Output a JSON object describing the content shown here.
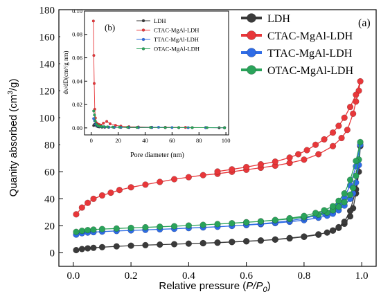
{
  "chart_data": [
    {
      "panel": "(a)",
      "type": "line",
      "xlabel_main": "Relative pressure (",
      "xlabel_var": "P/P",
      "xlabel_sub": "0",
      "xlabel_close": ")",
      "ylabel_pre": "Quanity absorbed (cm",
      "ylabel_sup": "3",
      "ylabel_post": "/g)",
      "xlim": [
        -0.05,
        1.05
      ],
      "ylim": [
        -10,
        180
      ],
      "xticks": [
        "0.0",
        "0.2",
        "0.4",
        "0.6",
        "0.8",
        "1.0"
      ],
      "yticks": [
        "0",
        "20",
        "40",
        "60",
        "80",
        "100",
        "120",
        "140",
        "160",
        "180"
      ],
      "grid": false,
      "legend_position": "top-right",
      "series": [
        {
          "name": "LDH",
          "color": "#3a3a3a",
          "x": [
            0.01,
            0.03,
            0.05,
            0.07,
            0.1,
            0.15,
            0.2,
            0.25,
            0.3,
            0.35,
            0.4,
            0.45,
            0.5,
            0.55,
            0.6,
            0.65,
            0.7,
            0.75,
            0.8,
            0.85,
            0.9,
            0.92,
            0.94,
            0.96,
            0.97,
            0.98,
            0.99,
            0.995,
            0.98,
            0.96,
            0.94,
            0.92,
            0.9,
            0.88,
            0.85,
            0.8,
            0.75,
            0.7,
            0.65,
            0.6,
            0.55,
            0.5,
            0.45
          ],
          "y": [
            2,
            2.8,
            3.3,
            3.7,
            4.2,
            4.8,
            5.3,
            5.7,
            6.1,
            6.4,
            6.8,
            7.1,
            7.5,
            8.0,
            8.5,
            9.1,
            9.8,
            10.7,
            11.8,
            13.4,
            16.5,
            18.5,
            21.5,
            27,
            33,
            44,
            60,
            79,
            47,
            31,
            23,
            19,
            16.5,
            15,
            13.7,
            12.1,
            10.9,
            9.9,
            9.1,
            8.6,
            8.1,
            7.6,
            7.2
          ]
        },
        {
          "name": "CTAC-MgAl-LDH",
          "color": "#e8373a",
          "x": [
            0.01,
            0.03,
            0.05,
            0.07,
            0.1,
            0.13,
            0.16,
            0.2,
            0.25,
            0.3,
            0.35,
            0.4,
            0.45,
            0.5,
            0.55,
            0.6,
            0.65,
            0.7,
            0.75,
            0.8,
            0.85,
            0.9,
            0.93,
            0.95,
            0.97,
            0.98,
            0.99,
            0.995,
            0.98,
            0.96,
            0.94,
            0.92,
            0.9,
            0.87,
            0.84,
            0.81,
            0.78,
            0.75,
            0.7,
            0.65,
            0.6,
            0.55,
            0.5
          ],
          "y": [
            28.5,
            33.5,
            37,
            40,
            42.5,
            44.5,
            46.5,
            48.5,
            50.5,
            52.5,
            54.5,
            56,
            57.5,
            58.5,
            60,
            61.5,
            63,
            64.5,
            66.5,
            69,
            73,
            79,
            85,
            91,
            103,
            112,
            120,
            127,
            117,
            108,
            100,
            94,
            89,
            84,
            80,
            76,
            73,
            70.5,
            67.5,
            65.5,
            63.5,
            61.8,
            60.2
          ]
        },
        {
          "name": "TTAC-MgAl-LDH",
          "color": "#2f6ce6",
          "x": [
            0.01,
            0.03,
            0.05,
            0.07,
            0.1,
            0.15,
            0.2,
            0.25,
            0.3,
            0.35,
            0.4,
            0.45,
            0.5,
            0.55,
            0.6,
            0.65,
            0.7,
            0.75,
            0.8,
            0.85,
            0.88,
            0.9,
            0.92,
            0.94,
            0.96,
            0.97,
            0.98,
            0.99,
            0.995,
            0.98,
            0.96,
            0.94,
            0.92,
            0.9,
            0.87,
            0.84,
            0.8,
            0.75,
            0.7,
            0.65,
            0.6
          ],
          "y": [
            13.5,
            14.5,
            15,
            15.3,
            15.7,
            16.2,
            16.6,
            17,
            17.4,
            17.8,
            18.3,
            18.8,
            19.3,
            19.9,
            20.5,
            21.2,
            22,
            23,
            24.2,
            26,
            27.5,
            29,
            31.5,
            35,
            40,
            44,
            52,
            65,
            80,
            64,
            50,
            41,
            36,
            32.5,
            29.5,
            27.5,
            25.5,
            23.8,
            22.5,
            21.5,
            20.8
          ]
        },
        {
          "name": "OTAC-MgAl-LDH",
          "color": "#2aa35a",
          "x": [
            0.01,
            0.03,
            0.05,
            0.07,
            0.1,
            0.15,
            0.2,
            0.25,
            0.3,
            0.35,
            0.4,
            0.45,
            0.5,
            0.55,
            0.6,
            0.65,
            0.7,
            0.75,
            0.8,
            0.85,
            0.88,
            0.9,
            0.92,
            0.94,
            0.96,
            0.97,
            0.98,
            0.99,
            0.995,
            0.98,
            0.96,
            0.94,
            0.92,
            0.9,
            0.87,
            0.84,
            0.8,
            0.75,
            0.7,
            0.65,
            0.6
          ],
          "y": [
            15.5,
            16.3,
            16.8,
            17.2,
            17.6,
            18,
            18.5,
            18.9,
            19.3,
            19.7,
            20.2,
            20.7,
            21.3,
            21.9,
            22.6,
            23.3,
            24.1,
            25.1,
            26.4,
            28.3,
            29.8,
            31.5,
            34,
            37.5,
            43,
            48,
            57,
            69,
            82,
            68,
            54,
            44,
            38.5,
            34.5,
            31.5,
            29.5,
            27.3,
            25.6,
            24.3,
            23.3,
            22.6
          ]
        }
      ]
    },
    {
      "panel": "(b)",
      "type": "line",
      "xlabel": "Pore diameter (nm)",
      "ylabel": "dv/dD(cm³/g nm)",
      "xlim": [
        -5,
        102
      ],
      "ylim": [
        -0.006,
        0.1
      ],
      "xticks": [
        "0",
        "20",
        "40",
        "60",
        "80",
        "100"
      ],
      "yticks": [
        "0.00",
        "0.02",
        "0.04",
        "0.06",
        "0.08",
        "0.10"
      ],
      "grid": false,
      "legend_position": "top-right",
      "series": [
        {
          "name": "LDH",
          "color": "#3a3a3a",
          "x": [
            1.8,
            2.5,
            3.2,
            4,
            5,
            6,
            8,
            10,
            13,
            17,
            22,
            28,
            35,
            45,
            55,
            65,
            75,
            85,
            95,
            99
          ],
          "y": [
            0.002,
            0.003,
            0.0025,
            0.0015,
            0.001,
            0.0008,
            0.0006,
            0.0005,
            0.0005,
            0.0004,
            0.0004,
            0.0003,
            0.0003,
            0.0003,
            0.0002,
            0.0002,
            0.0002,
            0.0002,
            0.0001,
            0.0001
          ]
        },
        {
          "name": "CTAC-MgAl-LDH",
          "color": "#e8373a",
          "x": [
            1.6,
            1.9,
            2.2,
            2.6,
            3.1,
            3.7,
            4.5,
            5.5,
            7,
            9,
            11.5,
            14,
            18,
            22,
            28,
            35,
            45,
            55,
            70,
            85,
            99
          ],
          "y": [
            0.0915,
            0.062,
            0.038,
            0.016,
            0.0085,
            0.0045,
            0.0035,
            0.003,
            0.0025,
            0.004,
            0.0055,
            0.0035,
            0.0022,
            0.0015,
            0.001,
            0.0008,
            0.0006,
            0.0005,
            0.0004,
            0.0003,
            0.0002
          ]
        },
        {
          "name": "TTAC-MgAl-LDH",
          "color": "#2f6ce6",
          "x": [
            1.8,
            2.5,
            3.2,
            4,
            5,
            6.5,
            8,
            10,
            13,
            17,
            22,
            28,
            35,
            45,
            50,
            60,
            72,
            85,
            99
          ],
          "y": [
            0.008,
            0.006,
            0.003,
            0.002,
            0.0015,
            0.0012,
            0.001,
            0.0008,
            0.0007,
            0.0006,
            0.0005,
            0.0005,
            0.0004,
            0.0004,
            0.0005,
            0.0003,
            0.0002,
            0.0002,
            0.0001
          ]
        },
        {
          "name": "OTAC-MgAl-LDH",
          "color": "#2aa35a",
          "x": [
            1.8,
            2.4,
            3,
            3.8,
            4.8,
            6,
            7.5,
            9.5,
            12,
            16,
            21,
            27,
            34,
            44,
            55,
            65,
            75,
            86,
            99
          ],
          "y": [
            0.0145,
            0.011,
            0.006,
            0.003,
            0.002,
            0.0015,
            0.0012,
            0.001,
            0.0009,
            0.0007,
            0.0006,
            0.0005,
            0.0004,
            0.0004,
            0.0003,
            0.0003,
            0.0002,
            0.0002,
            0.0001
          ]
        }
      ]
    }
  ]
}
